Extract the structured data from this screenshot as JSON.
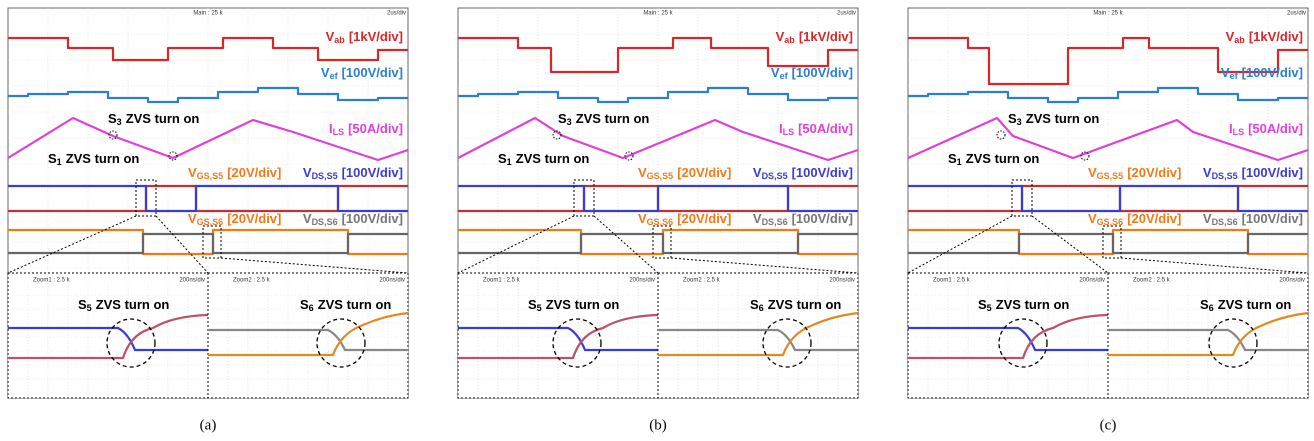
{
  "panels": [
    {
      "caption": "(a)",
      "header": {
        "main": "Main : 25 k",
        "time_div": "2us/div"
      },
      "traces": [
        {
          "symbol": "V",
          "sub": "ab",
          "scale": "[1kV/div]"
        },
        {
          "symbol": "V",
          "sub": "ef",
          "scale": "[100V/div]"
        },
        {
          "symbol": "I",
          "sub": "LS",
          "scale": "[50A/div]"
        },
        {
          "symbol": "V",
          "sub": "GS,S5",
          "scale": "[20V/div]"
        },
        {
          "symbol": "V",
          "sub": "DS,S5",
          "scale": "[100V/div]"
        },
        {
          "symbol": "V",
          "sub": "GS,S6",
          "scale": "[20V/div]"
        },
        {
          "symbol": "V",
          "sub": "DS,S6",
          "scale": "[100V/div]"
        }
      ],
      "annotations": [
        {
          "symbol": "S",
          "sub": "3",
          "text": "ZVS turn on"
        },
        {
          "symbol": "S",
          "sub": "1",
          "text": "ZVS turn on"
        }
      ],
      "zooms": [
        {
          "label": "Zoom1 : 2.5 k",
          "time_div": "200ns/div",
          "annotation": {
            "symbol": "S",
            "sub": "5",
            "text": "ZVS turn on"
          }
        },
        {
          "label": "Zoom2 : 2.5 k",
          "time_div": "200ns/div",
          "annotation": {
            "symbol": "S",
            "sub": "6",
            "text": "ZVS turn on"
          }
        }
      ]
    },
    {
      "caption": "(b)",
      "header": {
        "main": "Main : 25 k",
        "time_div": "2us/div"
      },
      "traces": [
        {
          "symbol": "V",
          "sub": "ab",
          "scale": "[1kV/div]"
        },
        {
          "symbol": "V",
          "sub": "ef",
          "scale": "[100V/div]"
        },
        {
          "symbol": "I",
          "sub": "LS",
          "scale": "[50A/div]"
        },
        {
          "symbol": "V",
          "sub": "GS,S5",
          "scale": "[20V/div]"
        },
        {
          "symbol": "V",
          "sub": "DS,S5",
          "scale": "[100V/div]"
        },
        {
          "symbol": "V",
          "sub": "GS,S6",
          "scale": "[20V/div]"
        },
        {
          "symbol": "V",
          "sub": "DS,S6",
          "scale": "[100V/div]"
        }
      ],
      "annotations": [
        {
          "symbol": "S",
          "sub": "3",
          "text": "ZVS turn on"
        },
        {
          "symbol": "S",
          "sub": "1",
          "text": "ZVS turn on"
        }
      ],
      "zooms": [
        {
          "label": "Zoom1 : 2.5 k",
          "time_div": "200ns/div",
          "annotation": {
            "symbol": "S",
            "sub": "5",
            "text": "ZVS turn on"
          }
        },
        {
          "label": "Zoom2 : 2.5 k",
          "time_div": "200ns/div",
          "annotation": {
            "symbol": "S",
            "sub": "6",
            "text": "ZVS turn on"
          }
        }
      ]
    },
    {
      "caption": "(c)",
      "header": {
        "main": "Main : 25 k",
        "time_div": "2us/div"
      },
      "traces": [
        {
          "symbol": "V",
          "sub": "ab",
          "scale": "[1kV/div]"
        },
        {
          "symbol": "V",
          "sub": "ef",
          "scale": "[100V/div]"
        },
        {
          "symbol": "I",
          "sub": "LS",
          "scale": "[50A/div]"
        },
        {
          "symbol": "V",
          "sub": "GS,S5",
          "scale": "[20V/div]"
        },
        {
          "symbol": "V",
          "sub": "DS,S5",
          "scale": "[100V/div]"
        },
        {
          "symbol": "V",
          "sub": "GS,S6",
          "scale": "[20V/div]"
        },
        {
          "symbol": "V",
          "sub": "DS,S6",
          "scale": "[100V/div]"
        }
      ],
      "annotations": [
        {
          "symbol": "S",
          "sub": "3",
          "text": "ZVS turn on"
        },
        {
          "symbol": "S",
          "sub": "1",
          "text": "ZVS turn on"
        }
      ],
      "zooms": [
        {
          "label": "Zoom1 : 2.5 k",
          "time_div": "200ns/div",
          "annotation": {
            "symbol": "S",
            "sub": "5",
            "text": "ZVS turn on"
          }
        },
        {
          "label": "Zoom2 : 2.5 k",
          "time_div": "200ns/div",
          "annotation": {
            "symbol": "S",
            "sub": "6",
            "text": "ZVS turn on"
          }
        }
      ]
    }
  ]
}
